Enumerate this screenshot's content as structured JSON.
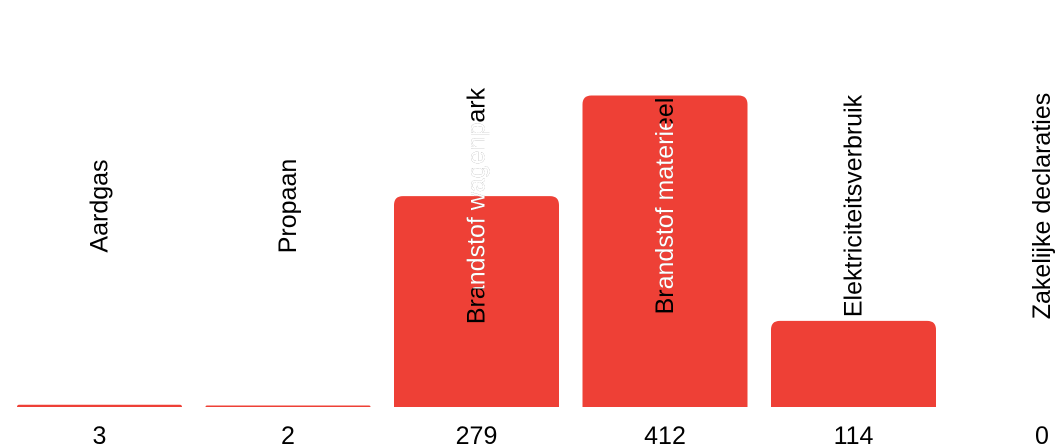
{
  "chart_data": {
    "type": "bar",
    "categories": [
      "Aardgas",
      "Propaan",
      "Brandstof wagenpark",
      "Brandstof materieel",
      "Elektriciteitsverbruik",
      "Zakelijke declaraties"
    ],
    "values": [
      3,
      2,
      279,
      412,
      114,
      0
    ],
    "value_labels": [
      "3",
      "2",
      "279",
      "412",
      "114",
      "0"
    ],
    "colors": {
      "bar": "#ee4036",
      "label_on_white": "#000000",
      "label_on_bar": "#ffffff"
    }
  }
}
